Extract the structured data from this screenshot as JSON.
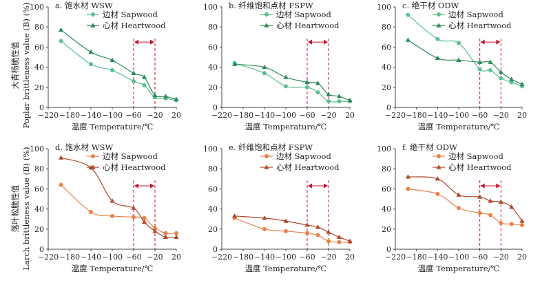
{
  "colors": {
    "row1_line": "#5bbf8e",
    "row1_heart": "#2e8b57",
    "row2_line": "#e8824a",
    "row2_heart": "#b3472b",
    "marker_band": "#c8102e",
    "axis": "#444444"
  },
  "row_labels": [
    {
      "cn": "大青杨脆性值",
      "en": "Poplar brittleness value (B) (%)"
    },
    {
      "cn": "落叶松脆性值",
      "en": "Larch brittleness value (B) (%)"
    }
  ],
  "xlabel": "温度 Temperature/℃",
  "chart_data": [
    {
      "type": "line",
      "title": "a. 饱水材 WSW",
      "x_ticks": [
        -220,
        -180,
        -140,
        -100,
        -60,
        -20,
        20
      ],
      "xlim": [
        -220,
        20
      ],
      "y_ticks": [
        0,
        20,
        40,
        60,
        80,
        100
      ],
      "ylim": [
        0,
        100
      ],
      "band": [
        -60,
        -20
      ],
      "series": [
        {
          "name": "边材 Sapwood",
          "marker": "circle",
          "x": [
            -196,
            -140,
            -100,
            -60,
            -40,
            -20,
            0,
            20
          ],
          "y": [
            66,
            43,
            37,
            26,
            22,
            10,
            9,
            7
          ]
        },
        {
          "name": "心材 Heartwood",
          "marker": "triangle",
          "x": [
            -196,
            -140,
            -100,
            -60,
            -40,
            -20,
            0,
            20
          ],
          "y": [
            77,
            55,
            47,
            34,
            30,
            12,
            11,
            8
          ]
        }
      ]
    },
    {
      "type": "line",
      "title": "b. 纤维饱和点材 FSPW",
      "x_ticks": [
        -220,
        -180,
        -140,
        -100,
        -60,
        -20,
        20
      ],
      "xlim": [
        -220,
        20
      ],
      "y_ticks": [
        0,
        20,
        40,
        60,
        80,
        100
      ],
      "ylim": [
        0,
        100
      ],
      "band": [
        -60,
        -20
      ],
      "series": [
        {
          "name": "边材 Sapwood",
          "marker": "circle",
          "x": [
            -196,
            -140,
            -100,
            -60,
            -40,
            -20,
            0,
            20
          ],
          "y": [
            44,
            34,
            21,
            20,
            15,
            6,
            6,
            6
          ]
        },
        {
          "name": "心材 Heartwood",
          "marker": "triangle",
          "x": [
            -196,
            -140,
            -100,
            -60,
            -40,
            -20,
            0,
            20
          ],
          "y": [
            43,
            40,
            30,
            25,
            24,
            13,
            11,
            7
          ]
        }
      ]
    },
    {
      "type": "line",
      "title": "c. 绝干材 ODW",
      "x_ticks": [
        -220,
        -180,
        -140,
        -100,
        -60,
        -20,
        20
      ],
      "xlim": [
        -220,
        20
      ],
      "y_ticks": [
        0,
        20,
        40,
        60,
        80,
        100
      ],
      "ylim": [
        0,
        100
      ],
      "band": [
        -60,
        -20
      ],
      "series": [
        {
          "name": "边材 Sapwood",
          "marker": "circle",
          "x": [
            -196,
            -140,
            -100,
            -60,
            -40,
            -20,
            0,
            20
          ],
          "y": [
            92,
            68,
            64,
            38,
            37,
            29,
            25,
            21
          ]
        },
        {
          "name": "心材 Heartwood",
          "marker": "triangle",
          "x": [
            -196,
            -140,
            -100,
            -60,
            -40,
            -20,
            0,
            20
          ],
          "y": [
            67,
            49,
            47,
            45,
            45,
            35,
            28,
            23
          ]
        }
      ]
    },
    {
      "type": "line",
      "title": "d. 饱水材 WSW",
      "x_ticks": [
        -220,
        -180,
        -140,
        -100,
        -60,
        -20,
        20
      ],
      "xlim": [
        -220,
        20
      ],
      "y_ticks": [
        0,
        20,
        40,
        60,
        80,
        100
      ],
      "ylim": [
        0,
        100
      ],
      "band": [
        -60,
        -20
      ],
      "series": [
        {
          "name": "边材 Sapwood",
          "marker": "circle",
          "x": [
            -196,
            -140,
            -100,
            -60,
            -40,
            -20,
            0,
            20
          ],
          "y": [
            64,
            37,
            33,
            32,
            31,
            21,
            16,
            16
          ]
        },
        {
          "name": "心材 Heartwood",
          "marker": "triangle",
          "x": [
            -196,
            -140,
            -100,
            -60,
            -40,
            -20,
            0,
            20
          ],
          "y": [
            91,
            81,
            48,
            41,
            27,
            18,
            12,
            12
          ]
        }
      ]
    },
    {
      "type": "line",
      "title": "e. 纤维饱和点材 FSPW",
      "x_ticks": [
        -220,
        -180,
        -140,
        -100,
        -60,
        -20,
        20
      ],
      "xlim": [
        -220,
        20
      ],
      "y_ticks": [
        0,
        20,
        40,
        60,
        80,
        100
      ],
      "ylim": [
        0,
        100
      ],
      "band": [
        -60,
        -20
      ],
      "series": [
        {
          "name": "边材 Sapwood",
          "marker": "circle",
          "x": [
            -196,
            -140,
            -100,
            -60,
            -40,
            -20,
            0,
            20
          ],
          "y": [
            31,
            20,
            18,
            16,
            14,
            8,
            7,
            7
          ]
        },
        {
          "name": "心材 Heartwood",
          "marker": "triangle",
          "x": [
            -196,
            -140,
            -100,
            -60,
            -40,
            -20,
            0,
            20
          ],
          "y": [
            33,
            31,
            28,
            24,
            22,
            17,
            12,
            8
          ]
        }
      ]
    },
    {
      "type": "line",
      "title": "f. 绝干材 ODW",
      "x_ticks": [
        -220,
        -180,
        -140,
        -100,
        -60,
        -20,
        20
      ],
      "xlim": [
        -220,
        20
      ],
      "y_ticks": [
        0,
        20,
        40,
        60,
        80,
        100
      ],
      "ylim": [
        0,
        100
      ],
      "band": [
        -60,
        -20
      ],
      "series": [
        {
          "name": "边材 Sapwood",
          "marker": "circle",
          "x": [
            -196,
            -140,
            -100,
            -60,
            -40,
            -20,
            0,
            20
          ],
          "y": [
            60,
            55,
            41,
            36,
            34,
            26,
            25,
            24
          ]
        },
        {
          "name": "心材 Heartwood",
          "marker": "triangle",
          "x": [
            -196,
            -140,
            -100,
            -60,
            -40,
            -20,
            0,
            20
          ],
          "y": [
            72,
            70,
            54,
            52,
            48,
            47,
            42,
            28
          ]
        }
      ]
    }
  ]
}
